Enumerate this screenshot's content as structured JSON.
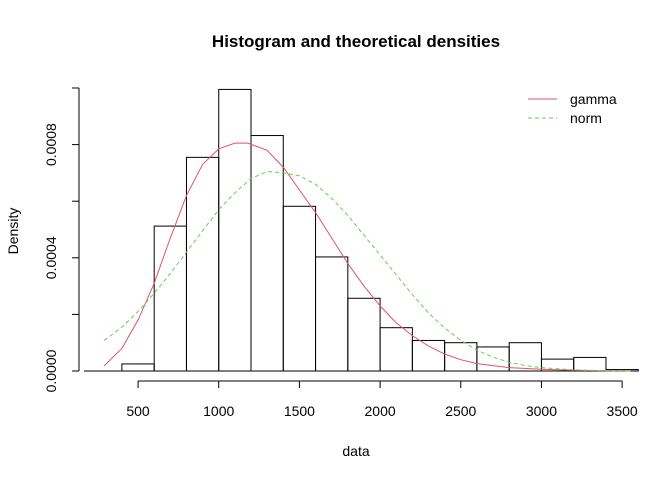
{
  "chart_data": {
    "type": "bar",
    "title": "Histogram and theoretical densities",
    "xlabel": "data",
    "ylabel": "Density",
    "xlim": [
      165,
      3555
    ],
    "ylim": [
      0,
      0.001
    ],
    "x_ticks": [
      500,
      1000,
      1500,
      2000,
      2500,
      3000,
      3500
    ],
    "x_tick_labels": [
      "500",
      "1000",
      "1500",
      "2000",
      "2500",
      "3000",
      "3500"
    ],
    "y_ticks": [
      0,
      0.0002,
      0.0004,
      0.0006,
      0.0008,
      0.001
    ],
    "y_tick_labels": [
      "0.0000",
      "",
      "0.0004",
      "",
      "0.0008",
      ""
    ],
    "grid": false,
    "legend_position": "top-right",
    "histogram": {
      "bins": [
        [
          200,
          400
        ],
        [
          400,
          600
        ],
        [
          600,
          800
        ],
        [
          800,
          1000
        ],
        [
          1000,
          1200
        ],
        [
          1200,
          1400
        ],
        [
          1400,
          1600
        ],
        [
          1600,
          1800
        ],
        [
          1800,
          2000
        ],
        [
          2000,
          2200
        ],
        [
          2200,
          2400
        ],
        [
          2400,
          2600
        ],
        [
          2600,
          2800
        ],
        [
          2800,
          3000
        ],
        [
          3000,
          3200
        ],
        [
          3200,
          3400
        ],
        [
          3400,
          3600
        ]
      ],
      "density": [
        0.0,
        2.5e-05,
        0.000512,
        0.000755,
        0.000995,
        0.000832,
        0.000582,
        0.000403,
        0.000257,
        0.000153,
        0.000108,
        0.0001,
        8.5e-05,
        0.0001,
        4.2e-05,
        4.8e-05,
        5e-06
      ]
    },
    "series": [
      {
        "name": "gamma",
        "style": "solid",
        "color": "#DF536B",
        "x": [
          290,
          400,
          500,
          600,
          700,
          800,
          900,
          1000,
          1100,
          1180,
          1300,
          1400,
          1500,
          1600,
          1700,
          1800,
          1900,
          2000,
          2100,
          2200,
          2300,
          2400,
          2500,
          2600,
          2800,
          3000,
          3200,
          3400,
          3555
        ],
        "values": [
          1.8e-05,
          8e-05,
          0.00018,
          0.00031,
          0.00047,
          0.00062,
          0.00073,
          0.000785,
          0.000805,
          0.000805,
          0.00078,
          0.00072,
          0.00064,
          0.00056,
          0.00047,
          0.00038,
          0.0003,
          0.00023,
          0.00017,
          0.000125,
          8.8e-05,
          6e-05,
          4e-05,
          2.6e-05,
          1.2e-05,
          6e-06,
          2.5e-06,
          1e-06,
          5e-07
        ]
      },
      {
        "name": "norm",
        "style": "dashed",
        "color": "#61D04F",
        "x": [
          290,
          400,
          500,
          600,
          700,
          800,
          900,
          1000,
          1100,
          1200,
          1300,
          1400,
          1500,
          1600,
          1700,
          1800,
          1900,
          2000,
          2100,
          2200,
          2300,
          2400,
          2500,
          2600,
          2700,
          2800,
          2900,
          3000,
          3200,
          3400,
          3555
        ],
        "values": [
          0.000108,
          0.000155,
          0.00021,
          0.000275,
          0.000345,
          0.00042,
          0.000495,
          0.00057,
          0.00063,
          0.00068,
          0.000705,
          0.0007,
          0.00069,
          0.00066,
          0.00061,
          0.00055,
          0.00048,
          0.00041,
          0.00034,
          0.00027,
          0.000205,
          0.000152,
          0.000108,
          7.4e-05,
          4.9e-05,
          3.1e-05,
          1.9e-05,
          1.2e-05,
          4e-06,
          1.2e-06,
          5e-07
        ]
      }
    ]
  }
}
